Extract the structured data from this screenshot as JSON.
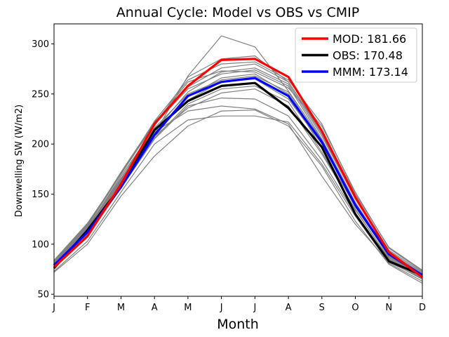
{
  "chart_data": {
    "type": "line",
    "title": "Annual Cycle: Model vs OBS vs CMIP",
    "xlabel": "Month",
    "ylabel": "Downwelling SW (W/m2)",
    "categories": [
      "J",
      "F",
      "M",
      "A",
      "M",
      "J",
      "J",
      "A",
      "S",
      "O",
      "N",
      "D"
    ],
    "ylim": [
      48,
      320
    ],
    "yticks": [
      50,
      100,
      150,
      200,
      250,
      300
    ],
    "series": [
      {
        "name": "MOD: 181.66",
        "color": "#ff0000",
        "role": "highlight",
        "values": [
          77,
          108,
          160,
          220,
          258,
          284,
          285,
          267,
          213,
          147,
          92,
          67
        ]
      },
      {
        "name": "OBS: 170.48",
        "color": "#000000",
        "role": "highlight",
        "values": [
          76,
          114,
          158,
          214,
          243,
          258,
          261,
          236,
          197,
          130,
          83,
          69
        ]
      },
      {
        "name": "MMM: 173.14",
        "color": "#0000ff",
        "role": "highlight",
        "values": [
          79,
          112,
          157,
          209,
          248,
          262,
          266,
          248,
          202,
          139,
          90,
          69
        ]
      }
    ],
    "cmip_models": [
      {
        "values": [
          78,
          110,
          158,
          210,
          268,
          308,
          297,
          253,
          204,
          140,
          92,
          70
        ]
      },
      {
        "values": [
          80,
          115,
          165,
          218,
          267,
          285,
          288,
          262,
          210,
          145,
          93,
          70
        ]
      },
      {
        "values": [
          72,
          100,
          148,
          188,
          218,
          233,
          234,
          218,
          178,
          123,
          80,
          61
        ]
      },
      {
        "values": [
          73,
          103,
          152,
          200,
          224,
          228,
          228,
          222,
          180,
          128,
          81,
          63
        ]
      },
      {
        "values": [
          76,
          108,
          156,
          205,
          238,
          246,
          245,
          228,
          184,
          130,
          83,
          65
        ]
      },
      {
        "values": [
          78,
          114,
          163,
          212,
          233,
          238,
          235,
          220,
          168,
          120,
          82,
          66
        ]
      },
      {
        "values": [
          79,
          116,
          168,
          216,
          250,
          264,
          268,
          252,
          200,
          138,
          88,
          68
        ]
      },
      {
        "values": [
          81,
          118,
          170,
          220,
          255,
          270,
          274,
          258,
          205,
          142,
          90,
          70
        ]
      },
      {
        "values": [
          80,
          117,
          166,
          214,
          244,
          262,
          265,
          245,
          200,
          140,
          87,
          68
        ]
      },
      {
        "values": [
          82,
          119,
          172,
          222,
          257,
          276,
          280,
          262,
          212,
          148,
          94,
          72
        ]
      },
      {
        "values": [
          77,
          112,
          160,
          208,
          236,
          251,
          255,
          238,
          190,
          135,
          85,
          66
        ]
      },
      {
        "values": [
          83,
          120,
          171,
          221,
          262,
          273,
          272,
          256,
          218,
          152,
          96,
          73
        ]
      },
      {
        "values": [
          79,
          114,
          162,
          210,
          247,
          266,
          270,
          250,
          196,
          137,
          88,
          69
        ]
      },
      {
        "values": [
          81,
          116,
          164,
          213,
          252,
          272,
          276,
          260,
          208,
          145,
          92,
          71
        ]
      },
      {
        "values": [
          78,
          111,
          158,
          206,
          240,
          255,
          258,
          242,
          192,
          134,
          86,
          67
        ]
      },
      {
        "values": [
          84,
          121,
          170,
          223,
          264,
          280,
          282,
          264,
          220,
          150,
          97,
          74
        ]
      }
    ],
    "legend": "top-right",
    "grid": false
  }
}
